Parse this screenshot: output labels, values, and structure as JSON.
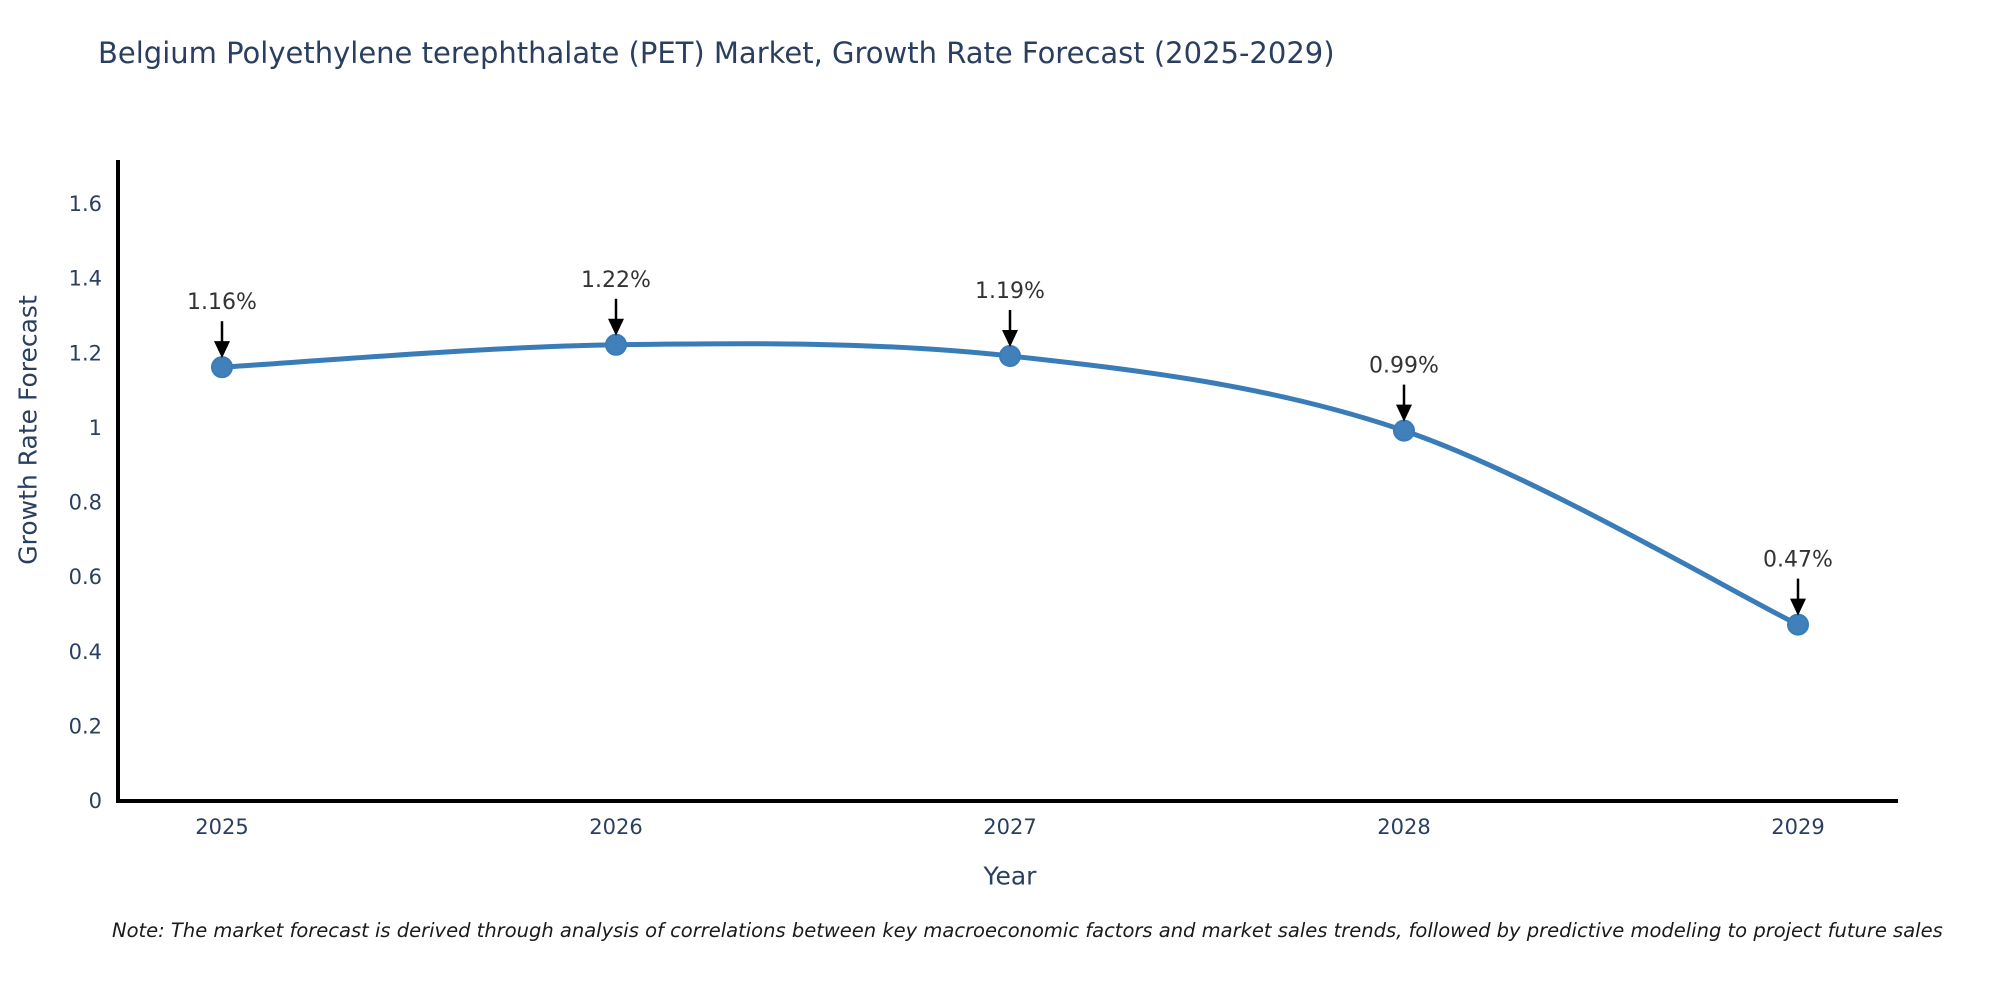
{
  "chart_data": {
    "type": "line",
    "title": "Belgium Polyethylene terephthalate (PET) Market, Growth Rate Forecast (2025-2029)",
    "xlabel": "Year",
    "ylabel": "Growth Rate Forecast",
    "x": [
      2025,
      2026,
      2027,
      2028,
      2029
    ],
    "values": [
      1.16,
      1.22,
      1.19,
      0.99,
      0.47
    ],
    "point_labels": [
      "1.16%",
      "1.22%",
      "1.19%",
      "0.99%",
      "0.47%"
    ],
    "yticks": [
      0,
      0.2,
      0.4,
      0.6,
      0.8,
      1,
      1.2,
      1.4,
      1.6
    ],
    "ylim": [
      0,
      1.72
    ],
    "grid": false,
    "legend": "none",
    "line_color": "#3a7cb8",
    "marker_color": "#4181bb",
    "axis_color": "#000000",
    "tick_color": "#2a3f5f",
    "annotation_text_color": "#333333",
    "annotation_arrow_color": "#000000",
    "note": "Note: The market forecast is derived through analysis of correlations between key macroeconomic factors and market sales trends, followed by predictive modeling to project future sales"
  }
}
